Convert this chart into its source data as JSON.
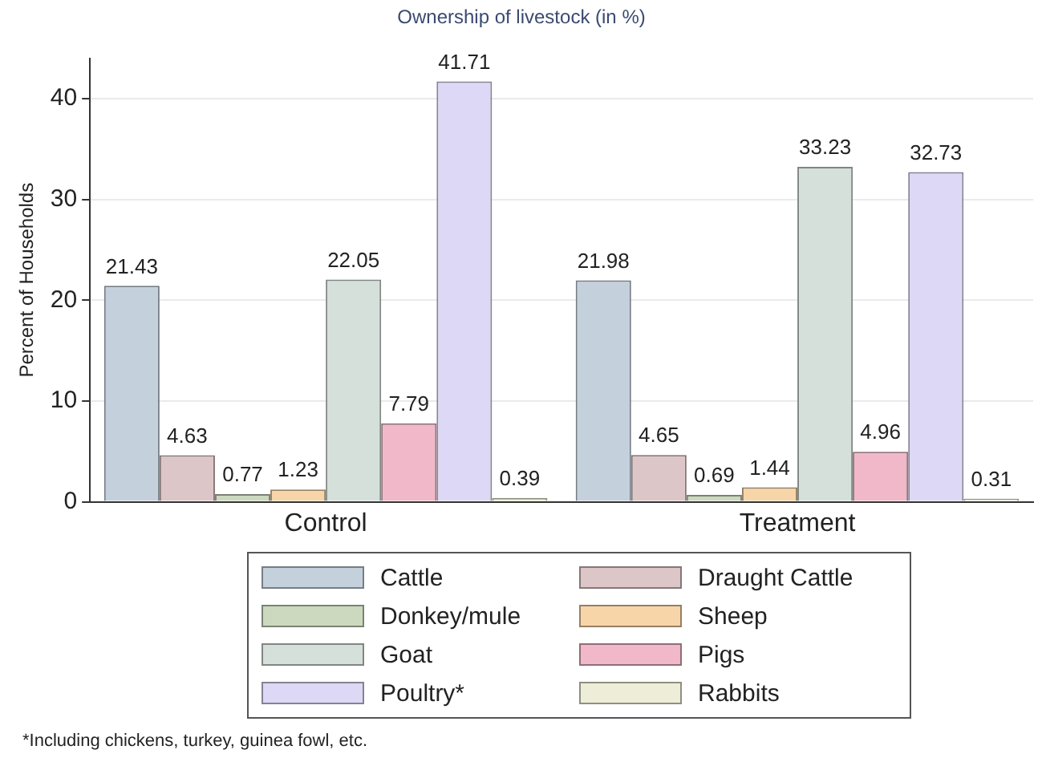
{
  "chart_data": {
    "type": "bar",
    "title": "Ownership of livestock (in %)",
    "ylabel": "Percent of Households",
    "categories": [
      "Control",
      "Treatment"
    ],
    "series": [
      {
        "name": "Cattle",
        "color": "#c5d0dd",
        "values": [
          21.43,
          21.98
        ]
      },
      {
        "name": "Draught Cattle",
        "color": "#ddc6c8",
        "values": [
          4.63,
          4.65
        ]
      },
      {
        "name": "Donkey/mule",
        "color": "#ccd9bf",
        "values": [
          0.77,
          0.69
        ]
      },
      {
        "name": "Sheep",
        "color": "#f8d5a8",
        "values": [
          1.23,
          1.44
        ]
      },
      {
        "name": "Goat",
        "color": "#d5e0da",
        "values": [
          22.05,
          33.23
        ]
      },
      {
        "name": "Pigs",
        "color": "#f0b8c8",
        "values": [
          7.79,
          4.96
        ]
      },
      {
        "name": "Poultry*",
        "color": "#dcd8f5",
        "values": [
          41.71,
          32.73
        ]
      },
      {
        "name": "Rabbits",
        "color": "#eeeed8",
        "values": [
          0.39,
          0.31
        ]
      }
    ],
    "ylim": [
      0,
      44
    ],
    "yticks": [
      0,
      10,
      20,
      30,
      40
    ],
    "grid": "y",
    "legend": "bottom",
    "data_labels": true,
    "annotations": [
      "*Including chickens, turkey, guinea fowl, etc."
    ]
  }
}
